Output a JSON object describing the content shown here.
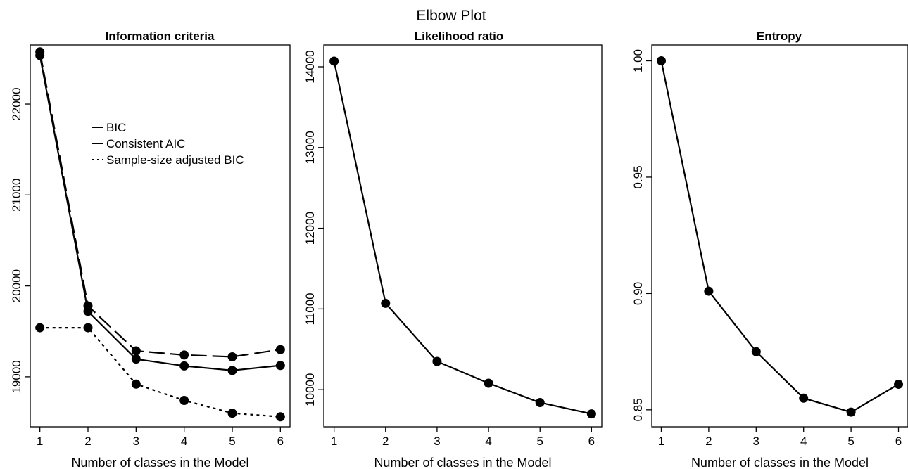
{
  "figure_title": "Elbow Plot",
  "colors": {
    "line": "#000000",
    "background": "#ffffff"
  },
  "chart_data": [
    {
      "type": "line",
      "title": "Information criteria",
      "xlabel": "Number of classes in the Model",
      "ylabel": "",
      "x": [
        1,
        2,
        3,
        4,
        5,
        6
      ],
      "xticks": [
        "1",
        "2",
        "3",
        "4",
        "5",
        "6"
      ],
      "yticks": [
        19000,
        20000,
        21000,
        22000
      ],
      "ytick_labels": [
        "19000",
        "20000",
        "21000",
        "22000"
      ],
      "ylim": [
        18450,
        22650
      ],
      "xlim": [
        0.8,
        6.2
      ],
      "grid": false,
      "legend_position": "upper-middle-left",
      "series": [
        {
          "name": "BIC",
          "style": "longdash",
          "values": [
            22575,
            19780,
            19285,
            19240,
            19220,
            19300
          ]
        },
        {
          "name": "Consistent AIC",
          "style": "solid",
          "values": [
            22535,
            19720,
            19195,
            19120,
            19070,
            19125
          ]
        },
        {
          "name": "Sample-size adjusted BIC",
          "style": "dotted",
          "values": [
            19540,
            19540,
            18920,
            18740,
            18600,
            18560
          ]
        }
      ]
    },
    {
      "type": "line",
      "title": "Likelihood ratio",
      "xlabel": "Number of classes in the Model",
      "ylabel": "",
      "x": [
        1,
        2,
        3,
        4,
        5,
        6
      ],
      "xticks": [
        "1",
        "2",
        "3",
        "4",
        "5",
        "6"
      ],
      "yticks": [
        10000,
        11000,
        12000,
        13000,
        14000
      ],
      "ytick_labels": [
        "10000",
        "11000",
        "12000",
        "13000",
        "14000"
      ],
      "ylim": [
        9540,
        14270
      ],
      "xlim": [
        0.8,
        6.2
      ],
      "grid": false,
      "series": [
        {
          "style": "solid",
          "values": [
            14070,
            11070,
            10350,
            10080,
            9840,
            9700
          ]
        }
      ]
    },
    {
      "type": "line",
      "title": "Entropy",
      "xlabel": "Number of classes in the Model",
      "ylabel": "",
      "x": [
        1,
        2,
        3,
        4,
        5,
        6
      ],
      "xticks": [
        "1",
        "2",
        "3",
        "4",
        "5",
        "6"
      ],
      "yticks": [
        0.85,
        0.9,
        0.95,
        1.0
      ],
      "ytick_labels": [
        "0.85",
        "0.90",
        "0.95",
        "1.00"
      ],
      "ylim": [
        0.8427,
        1.0068
      ],
      "xlim": [
        0.8,
        6.2
      ],
      "grid": false,
      "series": [
        {
          "style": "solid",
          "values": [
            1.0,
            0.901,
            0.875,
            0.855,
            0.849,
            0.861
          ]
        }
      ]
    }
  ]
}
